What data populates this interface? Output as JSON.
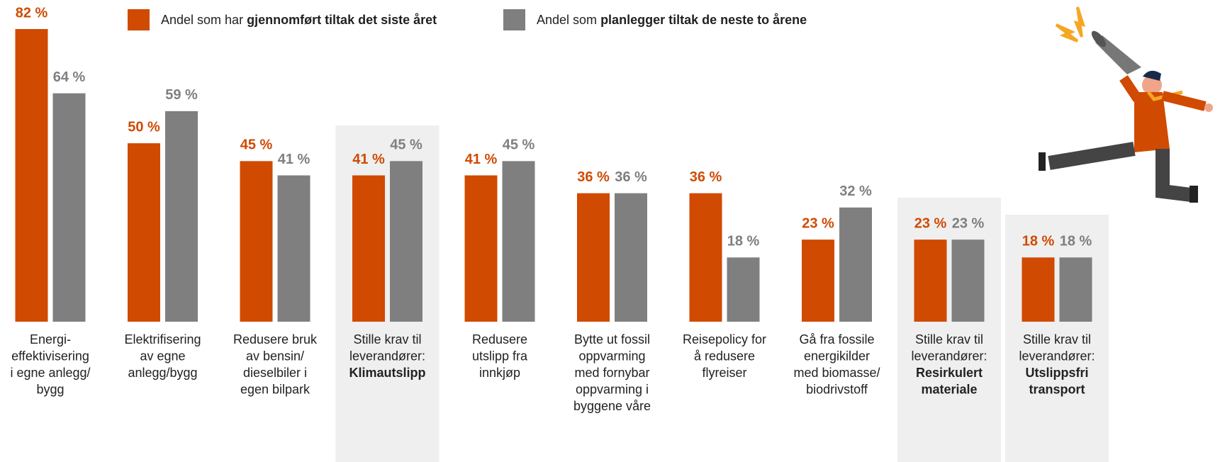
{
  "chart_data": {
    "type": "bar",
    "categories": [
      {
        "lines": [
          "Energi-",
          "effektivisering",
          "i egne anlegg/",
          "bygg"
        ],
        "bold": []
      },
      {
        "lines": [
          "Elektrifisering",
          "av egne",
          "anlegg/bygg"
        ],
        "bold": []
      },
      {
        "lines": [
          "Redusere bruk",
          "av bensin/",
          "dieselbiler i",
          "egen bilpark"
        ],
        "bold": []
      },
      {
        "lines": [
          "Stille krav til",
          "leverandører:"
        ],
        "bold": [
          "Klimautslipp"
        ]
      },
      {
        "lines": [
          "Redusere",
          "utslipp fra",
          "innkjøp"
        ],
        "bold": []
      },
      {
        "lines": [
          "Bytte ut fossil",
          "oppvarming",
          "med fornybar",
          "oppvarming i",
          "byggene våre"
        ],
        "bold": []
      },
      {
        "lines": [
          "Reisepolicy for",
          "å redusere",
          "flyreiser"
        ],
        "bold": []
      },
      {
        "lines": [
          "Gå fra fossile",
          "energikilder",
          "med biomasse/",
          "biodrivstoff"
        ],
        "bold": []
      },
      {
        "lines": [
          "Stille krav til",
          "leverandører:"
        ],
        "bold": [
          "Resirkulert",
          "materiale"
        ]
      },
      {
        "lines": [
          "Stille krav til",
          "leverandører:"
        ],
        "bold": [
          "Utslippsfri",
          "transport"
        ]
      }
    ],
    "highlight": [
      false,
      false,
      false,
      true,
      false,
      false,
      false,
      false,
      true,
      true
    ],
    "series": [
      {
        "name": {
          "plain": "Andel som har",
          "bold": "gjennomført tiltak det siste året"
        },
        "color": "#d04a02",
        "values": [
          82,
          50,
          45,
          41,
          41,
          36,
          36,
          23,
          23,
          18
        ],
        "value_labels": [
          "82 %",
          "50 %",
          "45 %",
          "41 %",
          "41 %",
          "36 %",
          "36 %",
          "23 %",
          "23 %",
          "18 %"
        ]
      },
      {
        "name": {
          "plain": "Andel som",
          "bold": "planlegger tiltak de neste to årene"
        },
        "color": "#7f7f7f",
        "values": [
          64,
          59,
          41,
          45,
          45,
          36,
          18,
          32,
          23,
          18
        ],
        "value_labels": [
          "64 %",
          "59 %",
          "41 %",
          "45 %",
          "45 %",
          "36 %",
          "18 %",
          "32 %",
          "23 %",
          "18 %"
        ]
      }
    ],
    "legend": "top"
  }
}
